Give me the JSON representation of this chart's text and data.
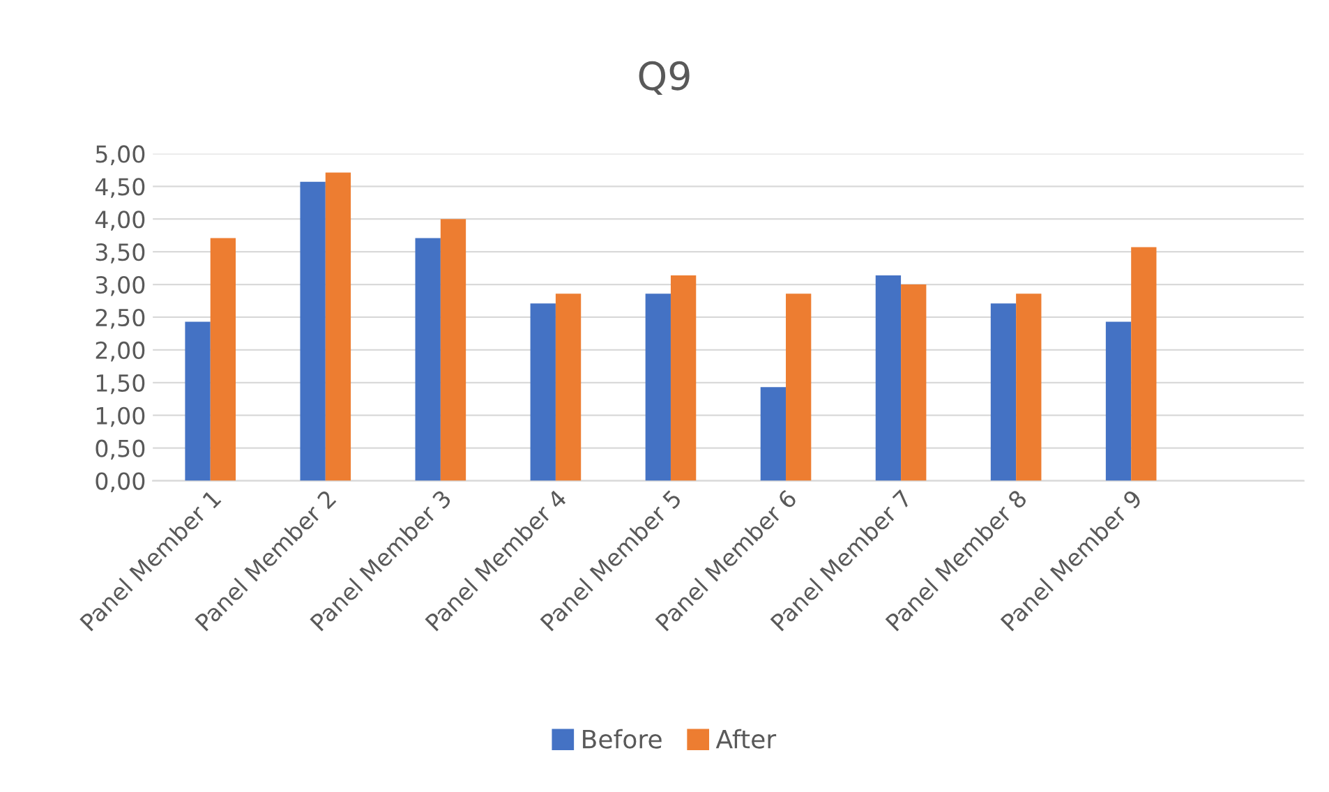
{
  "chart_data": {
    "type": "bar",
    "title": "Q9",
    "categories": [
      "Panel Member 1",
      "Panel Member 2",
      "Panel Member 3",
      "Panel Member 4",
      "Panel Member 5",
      "Panel Member 6",
      "Panel Member 7",
      "Panel Member 8",
      "Panel Member 9",
      null
    ],
    "series": [
      {
        "name": "Before",
        "color": "#4472c4",
        "values": [
          2.43,
          4.57,
          3.71,
          2.71,
          2.86,
          1.43,
          3.14,
          2.71,
          2.43,
          null
        ]
      },
      {
        "name": "After",
        "color": "#ed7d31",
        "values": [
          3.71,
          4.71,
          4.0,
          2.86,
          3.14,
          2.86,
          3.0,
          2.86,
          3.57,
          null
        ]
      }
    ],
    "ylim": [
      0,
      5
    ],
    "yticks": [
      {
        "value": 0,
        "label": "0,00"
      },
      {
        "value": 0.5,
        "label": "0,50"
      },
      {
        "value": 1,
        "label": "1,00"
      },
      {
        "value": 1.5,
        "label": "1,50"
      },
      {
        "value": 2,
        "label": "2,00"
      },
      {
        "value": 2.5,
        "label": "2,50"
      },
      {
        "value": 3,
        "label": "3,00"
      },
      {
        "value": 3.5,
        "label": "3,50"
      },
      {
        "value": 4,
        "label": "4,00"
      },
      {
        "value": 4.5,
        "label": "4,50"
      },
      {
        "value": 5,
        "label": "5,00"
      }
    ],
    "grid": "y",
    "legend": "bottom"
  }
}
